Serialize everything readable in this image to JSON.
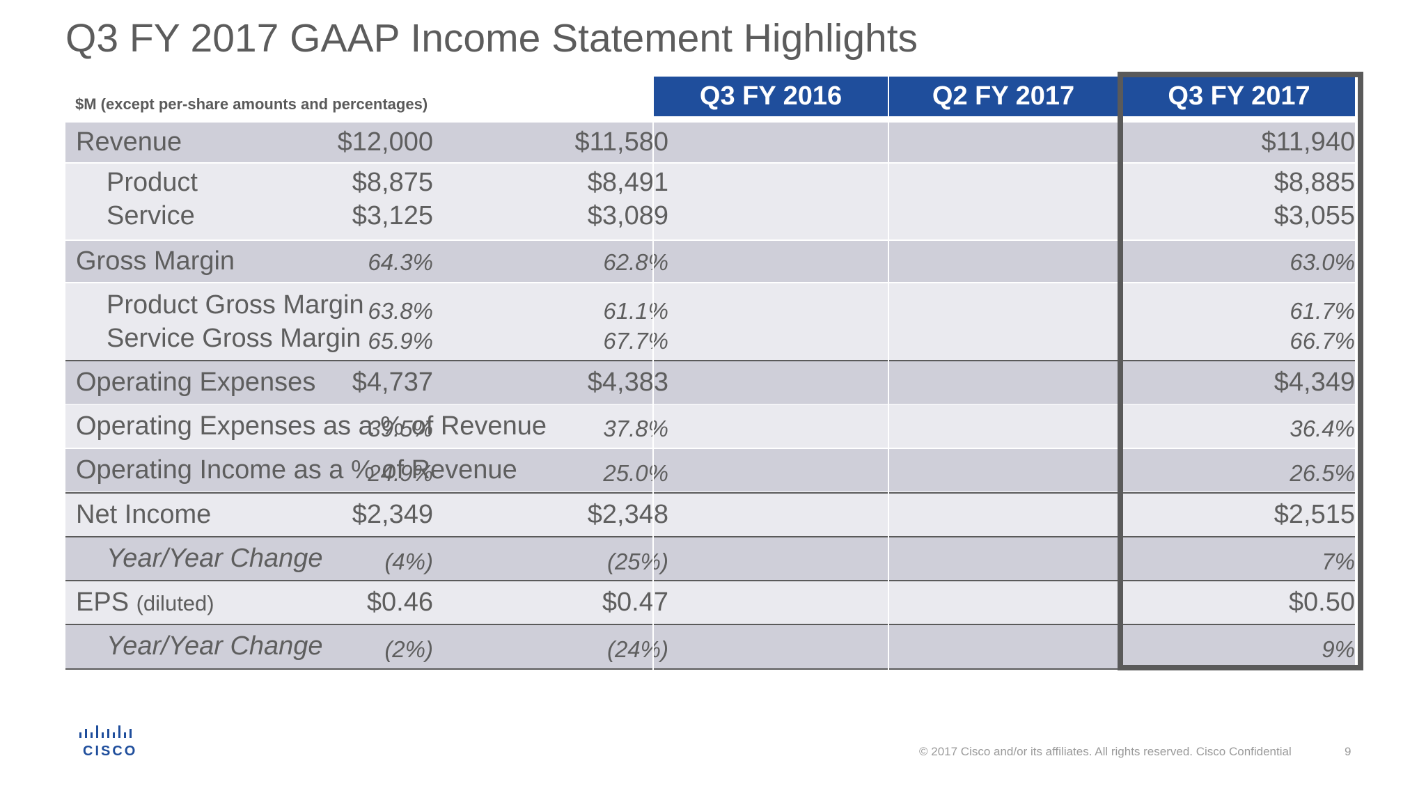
{
  "title": "Q3 FY 2017 GAAP Income Statement Highlights",
  "units_note": "$M (except per-share amounts and percentages)",
  "columns": [
    "Q3 FY 2016",
    "Q2 FY 2017",
    "Q3 FY 2017"
  ],
  "rows": {
    "revenue": {
      "label": "Revenue",
      "values": [
        "$12,000",
        "$11,580",
        "$11,940"
      ]
    },
    "product": {
      "label": "Product",
      "values": [
        "$8,875",
        "$8,491",
        "$8,885"
      ]
    },
    "service": {
      "label": "Service",
      "values": [
        "$3,125",
        "$3,089",
        "$3,055"
      ]
    },
    "gross_margin": {
      "label": "Gross Margin",
      "values": [
        "64.3%",
        "62.8%",
        "63.0%"
      ]
    },
    "product_gm": {
      "label": "Product Gross Margin",
      "values": [
        "63.8%",
        "61.1%",
        "61.7%"
      ]
    },
    "service_gm": {
      "label": "Service Gross Margin",
      "values": [
        "65.9%",
        "67.7%",
        "66.7%"
      ]
    },
    "opex": {
      "label": "Operating Expenses",
      "values": [
        "$4,737",
        "$4,383",
        "$4,349"
      ]
    },
    "opex_pct": {
      "label": "Operating Expenses as a % of Revenue",
      "values": [
        "39.5%",
        "37.8%",
        "36.4%"
      ]
    },
    "opinc_pct": {
      "label": "Operating Income as a % of Revenue",
      "values": [
        "24.9%",
        "25.0%",
        "26.5%"
      ]
    },
    "net_income": {
      "label": "Net Income",
      "values": [
        "$2,349",
        "$2,348",
        "$2,515"
      ]
    },
    "ni_yoy": {
      "label": "Year/Year Change",
      "values": [
        "(4%)",
        "(25%)",
        "7%"
      ]
    },
    "eps": {
      "label": "EPS",
      "label_suffix": "(diluted)",
      "values": [
        "$0.46",
        "$0.47",
        "$0.50"
      ]
    },
    "eps_yoy": {
      "label": "Year/Year Change",
      "values": [
        "(2%)",
        "(24%)",
        "9%"
      ]
    }
  },
  "logo": {
    "name": "cisco-logo",
    "text": "CISCO",
    "color": "#1f4e9c"
  },
  "footer": "© 2017  Cisco and/or its affiliates. All rights reserved.   Cisco Confidential",
  "page_number": "9",
  "colors": {
    "header_bg": "#1f4e9c",
    "row_dark": "#cfcfd9",
    "row_light": "#eaeaef",
    "highlight_border": "#5a5a5a"
  }
}
